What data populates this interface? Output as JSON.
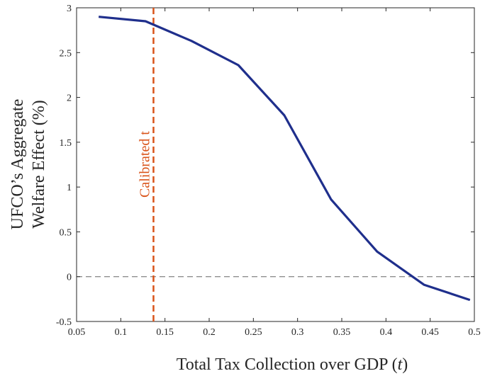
{
  "chart_data": {
    "type": "line",
    "xlabel": "Total Tax Collection over GDP (",
    "xlabel_var": "t",
    "xlabel_close": ")",
    "ylabel_line1": "UFCO’s Aggregate",
    "ylabel_line2": "Welfare Effect (%)",
    "xlim": [
      0.05,
      0.5
    ],
    "ylim": [
      -0.5,
      3
    ],
    "x_ticks": [
      0.05,
      0.1,
      0.15,
      0.2,
      0.25,
      0.3,
      0.35,
      0.4,
      0.45,
      0.5
    ],
    "x_tick_labels": [
      "0.05",
      "0.1",
      "0.15",
      "0.2",
      "0.25",
      "0.3",
      "0.35",
      "0.4",
      "0.45",
      "0.5"
    ],
    "y_ticks": [
      -0.5,
      0,
      0.5,
      1,
      1.5,
      2,
      2.5,
      3
    ],
    "y_tick_labels": [
      "-0.5",
      "0",
      "0.5",
      "1",
      "1.5",
      "2",
      "2.5",
      "3"
    ],
    "grid": false,
    "series": [
      {
        "color": "#1f2f8c",
        "x": [
          0.075,
          0.128,
          0.18,
          0.233,
          0.285,
          0.338,
          0.39,
          0.443,
          0.495
        ],
        "y": [
          2.9,
          2.85,
          2.63,
          2.36,
          1.8,
          0.86,
          0.28,
          -0.09,
          -0.26
        ]
      }
    ],
    "reference_lines": [
      {
        "orientation": "horizontal",
        "value": 0,
        "style": "dashed",
        "color": "#666666"
      },
      {
        "orientation": "vertical",
        "value": 0.137,
        "style": "dashed",
        "color": "#d95319",
        "label": "Calibrated t"
      }
    ]
  }
}
